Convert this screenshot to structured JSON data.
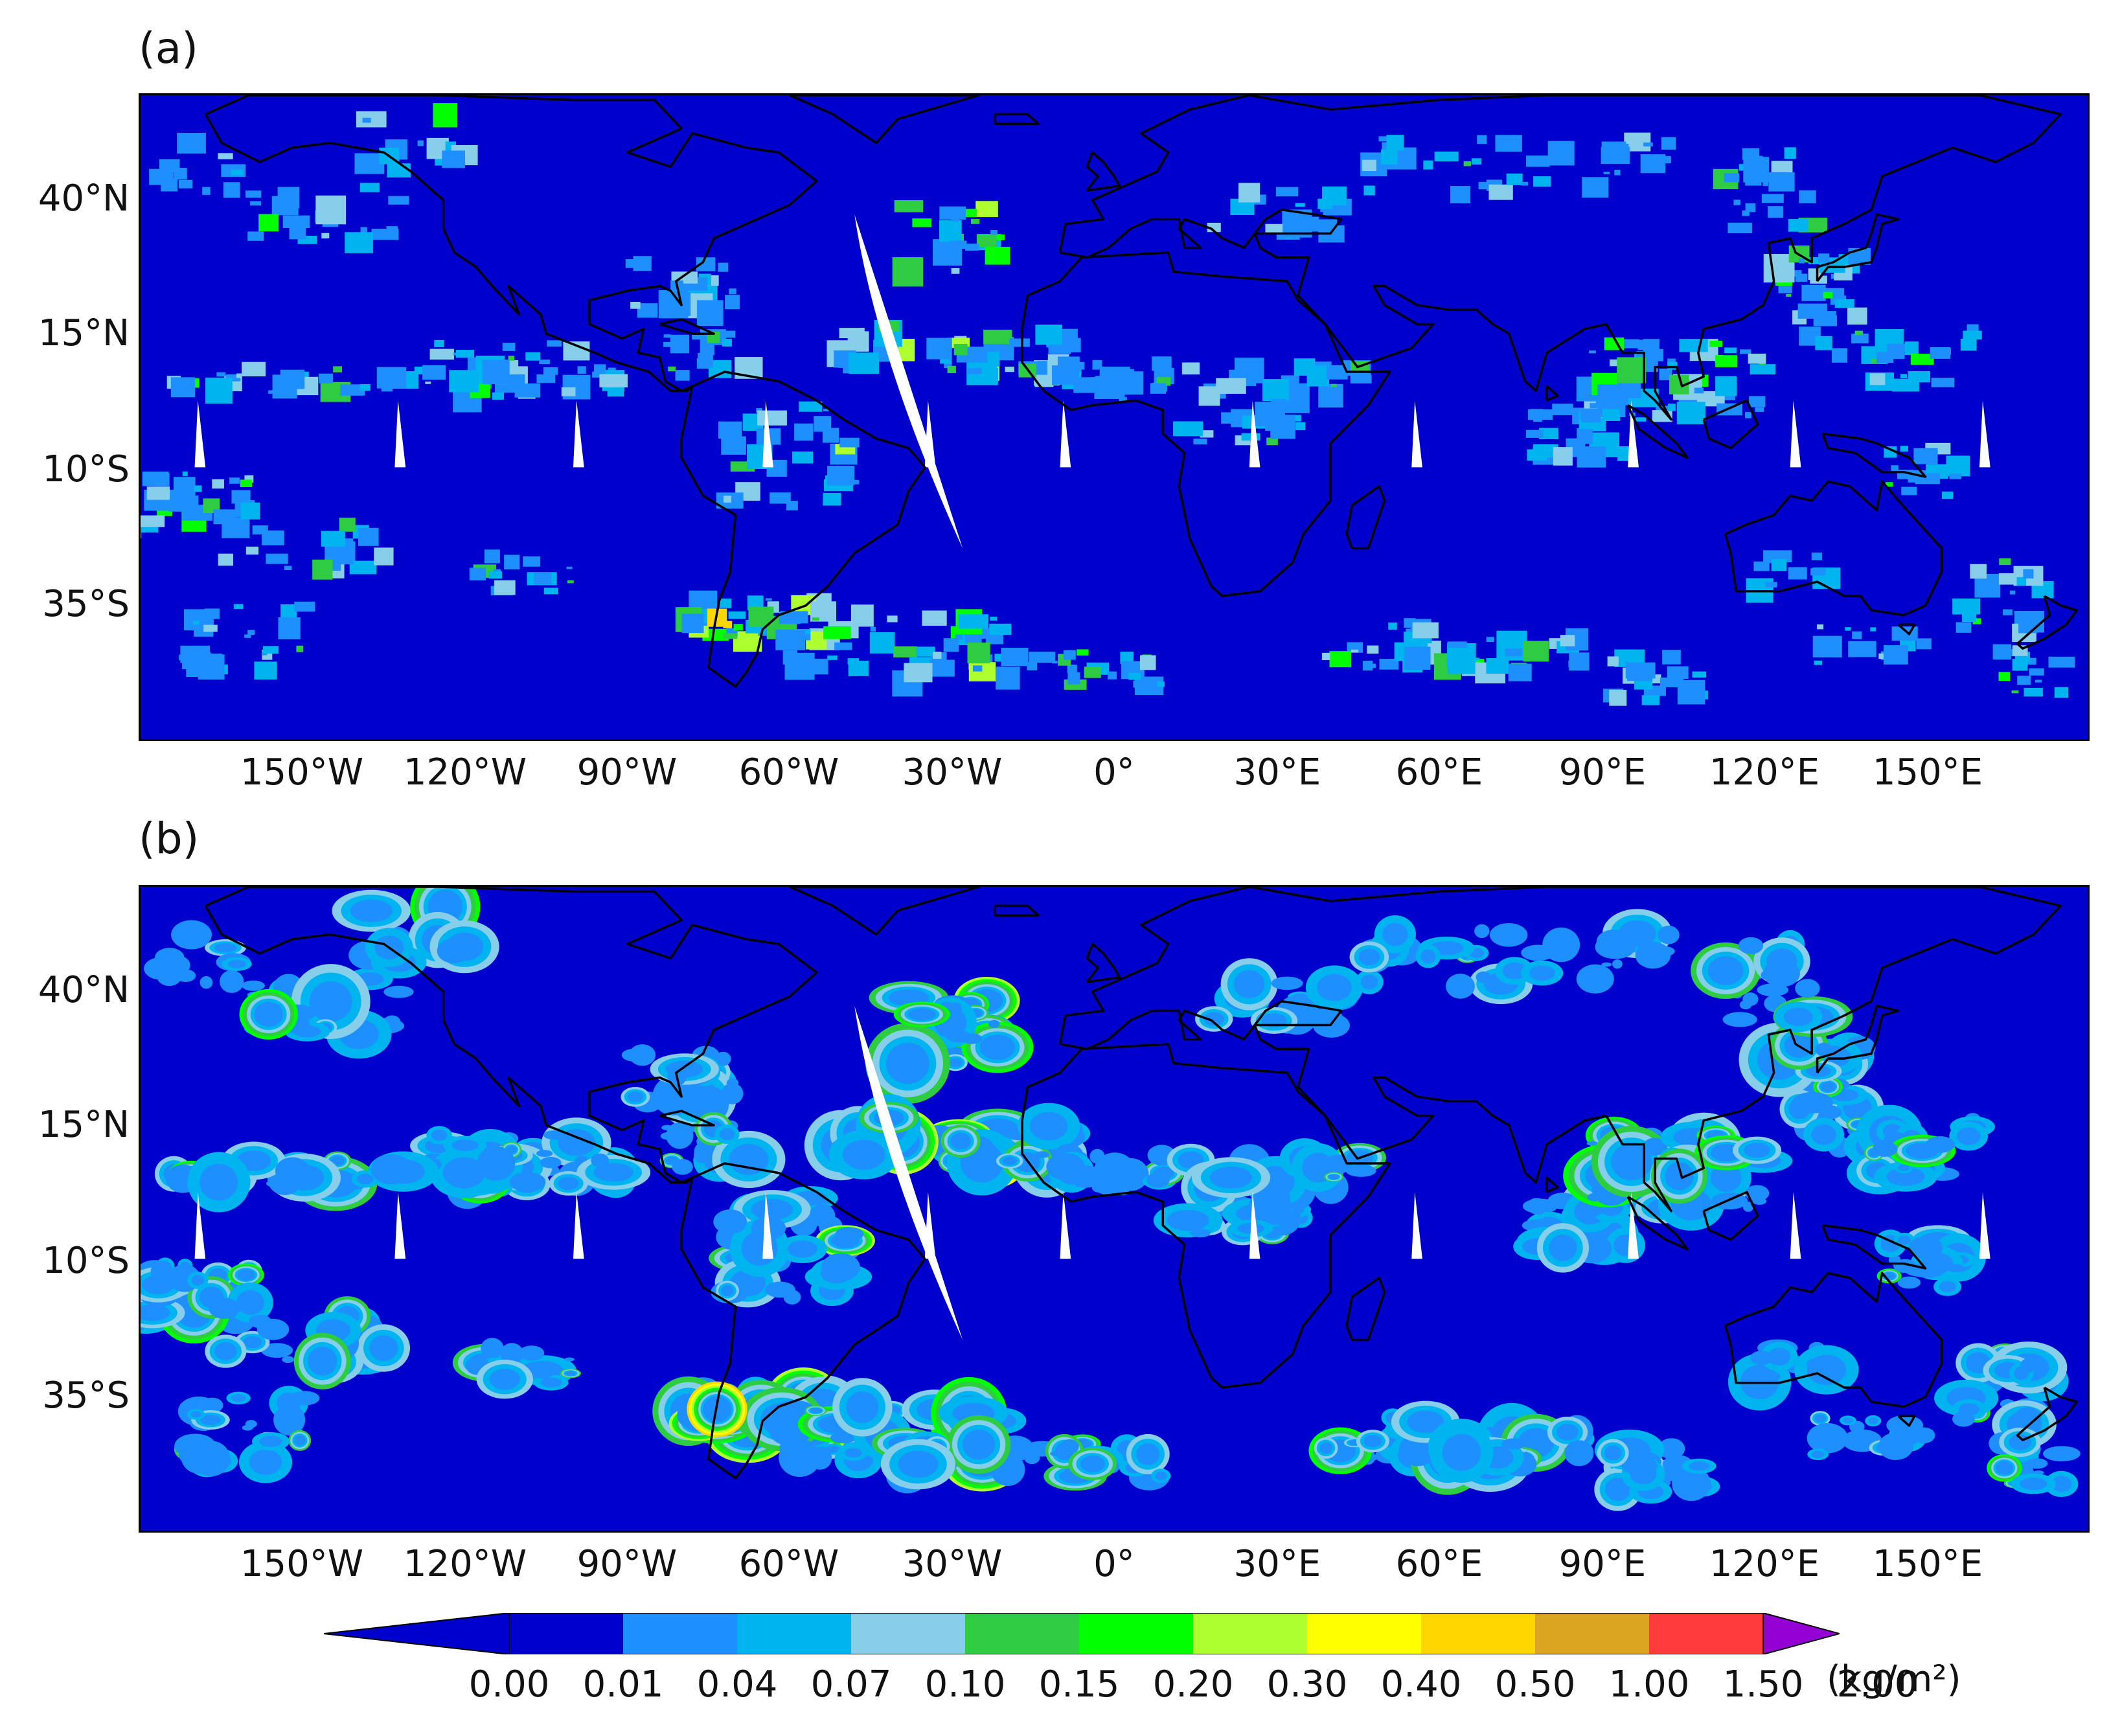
{
  "panels": [
    {
      "label": "(a)",
      "style": "pixelated"
    },
    {
      "label": "(b)",
      "style": "smooth"
    }
  ],
  "lat_labels": [
    "40°N",
    "15°N",
    "10°S",
    "35°S"
  ],
  "lon_labels": [
    "150°W",
    "120°W",
    "90°W",
    "60°W",
    "30°W",
    "0°",
    "30°E",
    "60°E",
    "90°E",
    "120°E",
    "150°E"
  ],
  "colorbar": {
    "ticks": [
      "0.00",
      "0.01",
      "0.04",
      "0.07",
      "0.10",
      "0.15",
      "0.20",
      "0.30",
      "0.40",
      "0.50",
      "1.00",
      "1.50",
      "2.00"
    ],
    "unit": "(kg/m²)",
    "colors": [
      "#0000cc",
      "#1e8fff",
      "#00b4f0",
      "#87ceeb",
      "#2ecc40",
      "#00ff00",
      "#adff2f",
      "#ffff00",
      "#ffd700",
      "#daa520",
      "#ff3b3b",
      "#9400d3"
    ],
    "under_color": "#0000cc",
    "over_color": "#9400d3"
  },
  "map_background": "#0000cc",
  "coastline_color": "#000000"
}
